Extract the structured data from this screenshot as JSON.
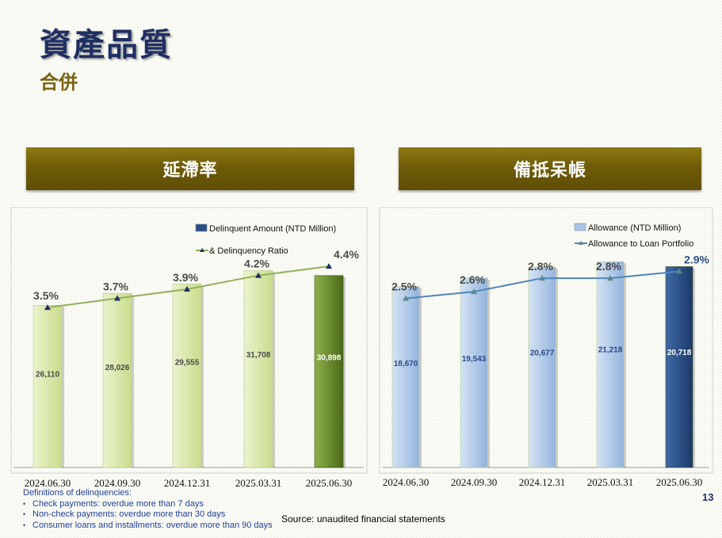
{
  "header": {
    "title": "資產品質",
    "subtitle": "合併"
  },
  "page_number": "13",
  "chart_data": [
    {
      "type": "bar",
      "title": "延滯率",
      "categories": [
        "2024.06.30",
        "2024.09.30",
        "2024.12.31",
        "2025.03.31",
        "2025.06.30"
      ],
      "series": [
        {
          "name": "Delinquent Amount (NTD Million)",
          "kind": "bar",
          "values": [
            26110,
            28026,
            29555,
            31708,
            30898
          ],
          "labels": [
            "26,110",
            "28,026",
            "29,555",
            "31,708",
            "30,898"
          ]
        },
        {
          "name": "& Delinquency Ratio",
          "kind": "line",
          "values": [
            3.5,
            3.7,
            3.9,
            4.2,
            4.4
          ],
          "labels": [
            "3.5%",
            "3.7%",
            "3.9%",
            "4.2%",
            "4.4%"
          ]
        }
      ],
      "ylim": [
        0,
        37000
      ],
      "ratio_range": [
        0.0,
        5.2
      ],
      "legend": "top-right",
      "colors": {
        "bar": "#d3e3a2",
        "bar_highlight": "#6a8a2a",
        "line": "#93b05a",
        "marker": "#1f2f63",
        "label": "#4a4a4a"
      }
    },
    {
      "type": "bar",
      "title": "備抵呆帳",
      "categories": [
        "2024.06.30",
        "2024.09.30",
        "2024.12.31",
        "2025.03.31",
        "2025.06.30"
      ],
      "series": [
        {
          "name": "Allowance  (NTD Million)",
          "kind": "bar",
          "values": [
            18670,
            19543,
            20677,
            21218,
            20718
          ],
          "labels": [
            "18,670",
            "19,543",
            "20,677",
            "21,218",
            "20,718"
          ]
        },
        {
          "name": "Allowance to Loan Portfolio",
          "kind": "line",
          "values": [
            2.5,
            2.6,
            2.8,
            2.8,
            2.9
          ],
          "labels": [
            "2.5%",
            "2.6%",
            "2.8%",
            "2.8%",
            "2.9%"
          ]
        }
      ],
      "ylim": [
        0,
        23700
      ],
      "ratio_range": [
        0.0,
        3.34
      ],
      "legend": "top-right",
      "colors": {
        "bar": "#a9c4e6",
        "bar_highlight": "#2e5286",
        "line": "#4f86bd",
        "marker": "#5a8a8a",
        "label": "#4a4a4a"
      }
    }
  ],
  "footnote": {
    "heading": "Definitions of delinquencies:",
    "items": [
      "Check payments: overdue more than 7 days",
      "Non-check payments: overdue  more than 30 days",
      "Consumer loans and installments: overdue more than 90 days"
    ]
  },
  "source": "Source: unaudited financial statements"
}
